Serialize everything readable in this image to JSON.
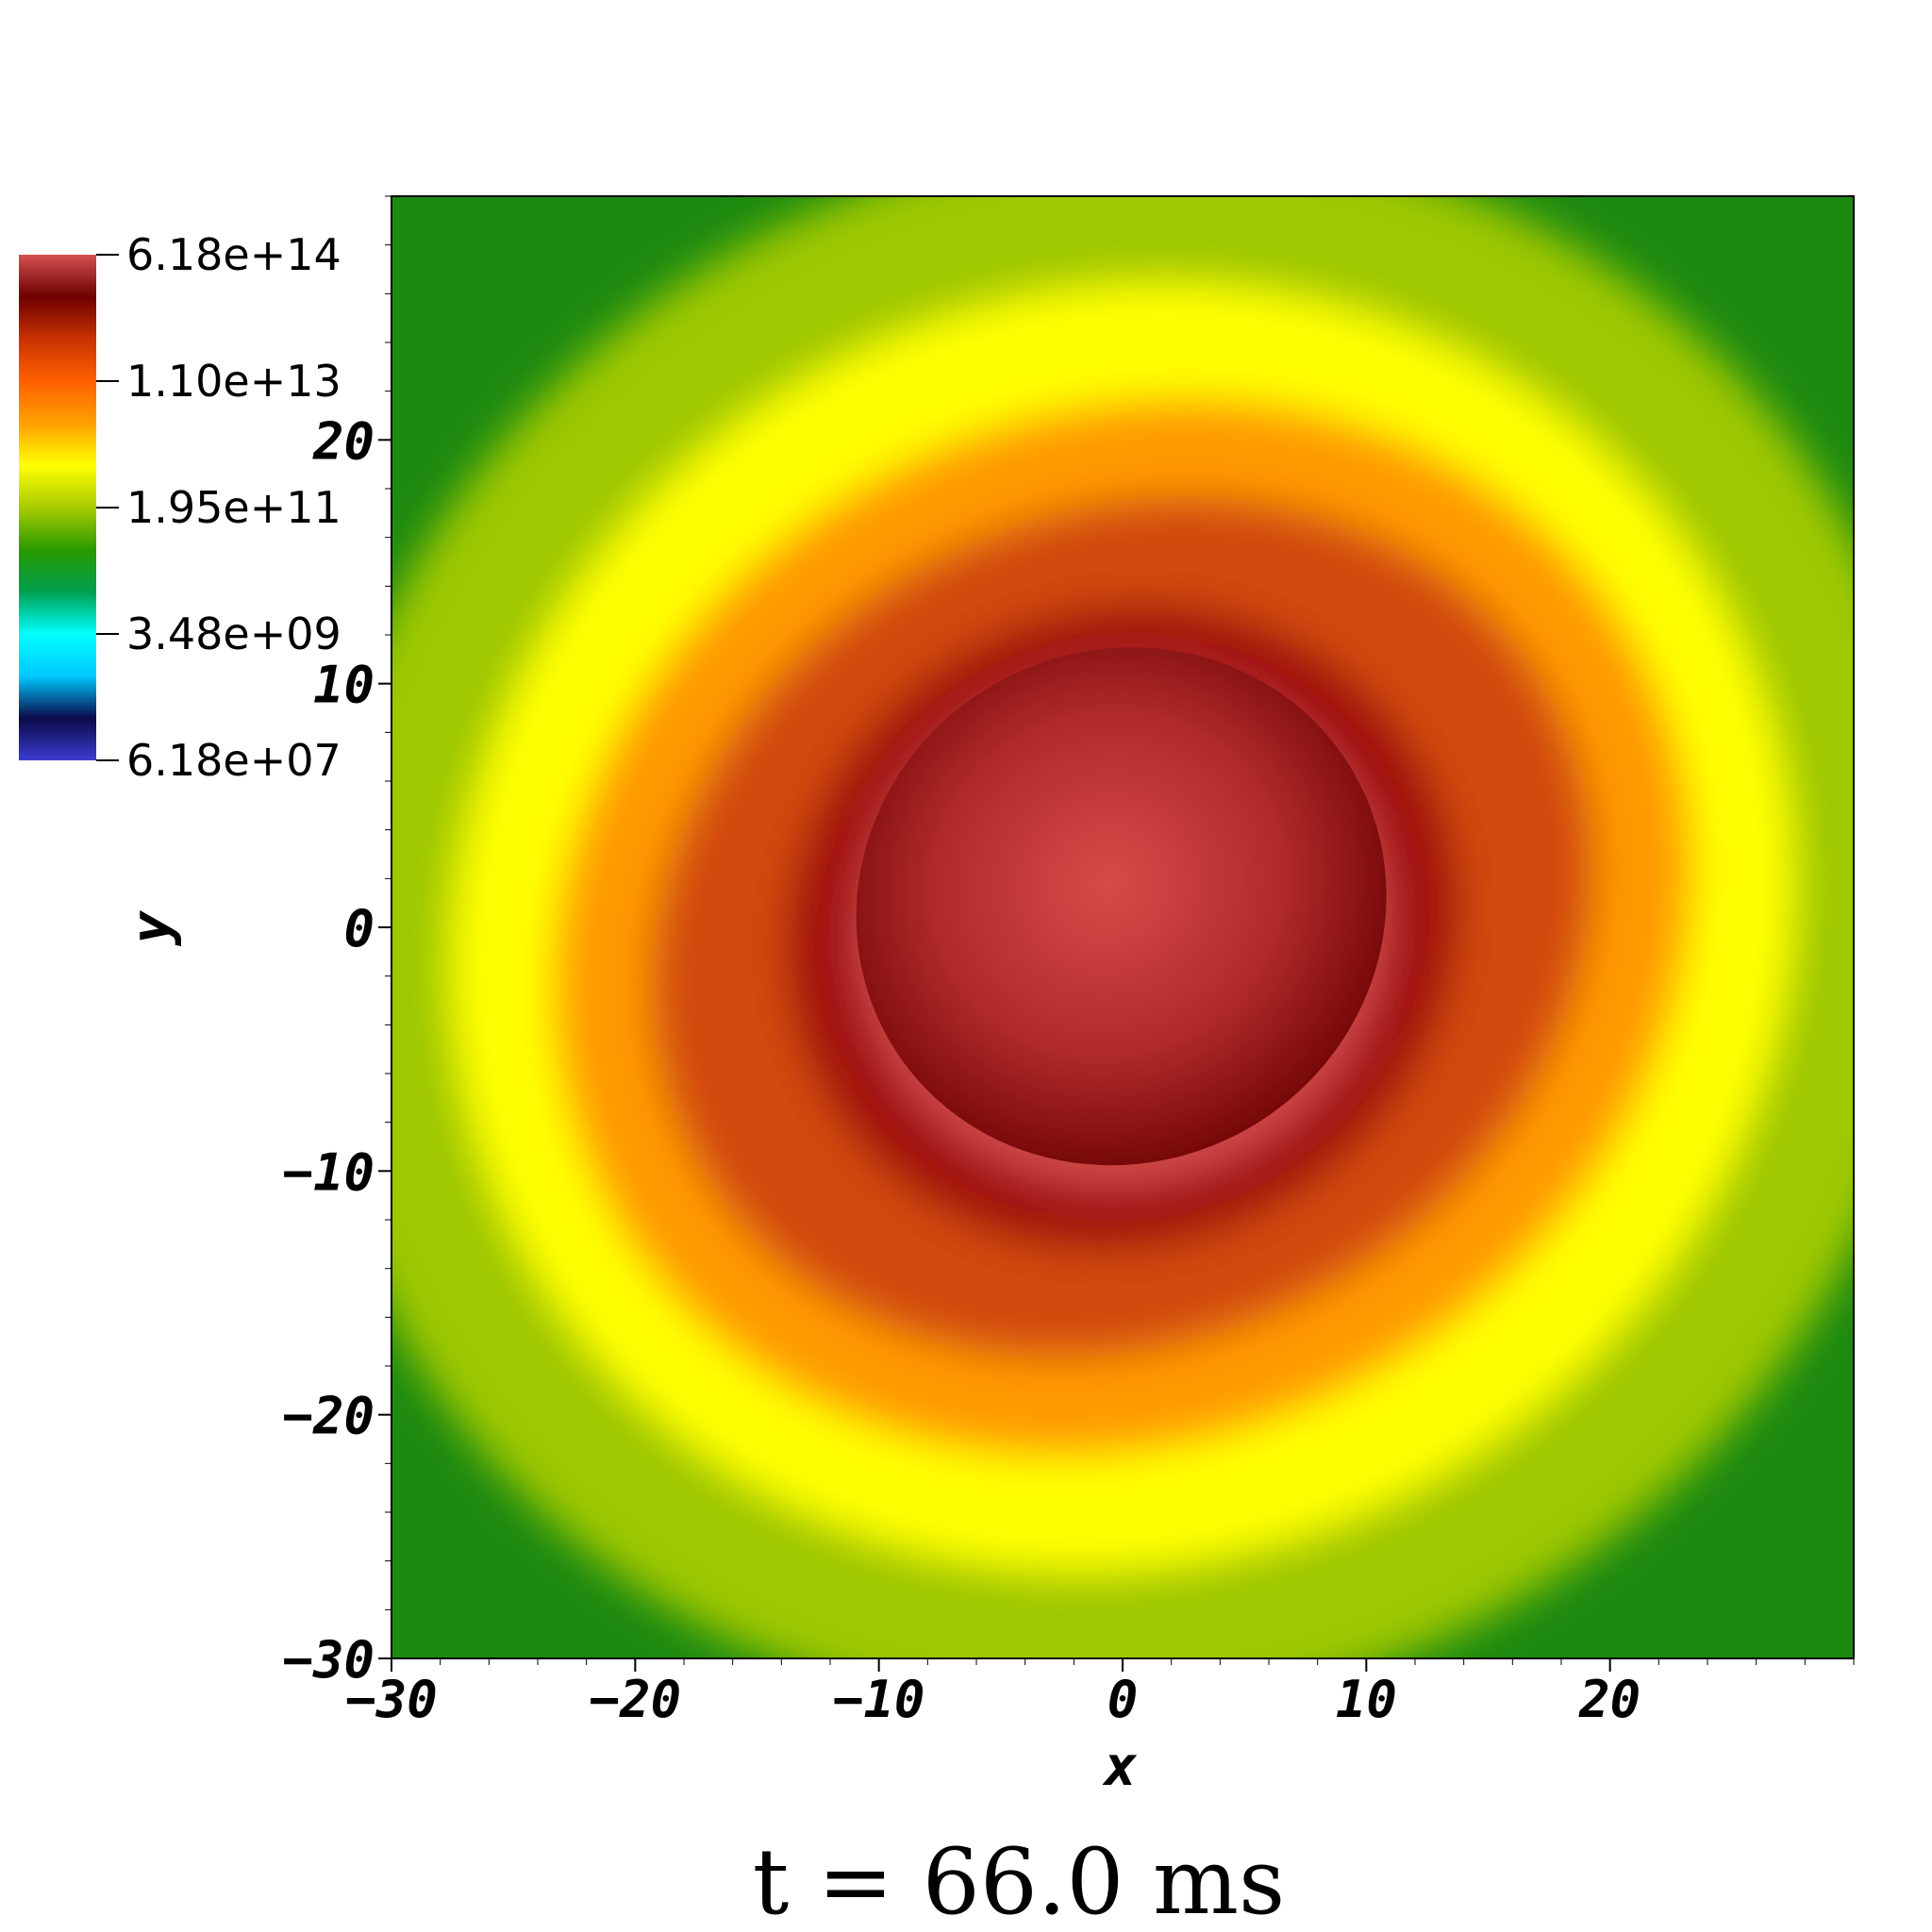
{
  "chart_data": {
    "type": "heatmap",
    "title": "",
    "xlabel": "x",
    "ylabel": "y",
    "xlim": [
      -30,
      30
    ],
    "ylim": [
      -30,
      30
    ],
    "x_ticks": [
      -30,
      -20,
      -10,
      0,
      10,
      20
    ],
    "y_ticks": [
      -30,
      -20,
      -10,
      0,
      10,
      20
    ],
    "colorbar": {
      "scale": "log",
      "min": 61800000.0,
      "max": 618000000000000.0,
      "tick_labels": [
        "6.18e+14",
        "1.10e+13",
        "1.95e+11",
        "3.48e+09",
        "6.18e+07"
      ],
      "tick_values": [
        618000000000000.0,
        11000000000000.0,
        195000000000.0,
        3480000000.0,
        61800000.0
      ],
      "colormap": [
        "#3c3cd0",
        "#0a0a4a",
        "#00c8ff",
        "#00ffff",
        "#00a050",
        "#2a9a00",
        "#a8cc00",
        "#ffff00",
        "#ffa000",
        "#ff6000",
        "#c83200",
        "#6e0000",
        "#d45050"
      ]
    },
    "structure": {
      "center": [
        0,
        0
      ],
      "core_value": 618000000000000.0,
      "rings": [
        {
          "rx": 11,
          "ry": 10.5,
          "value": 600000000000000.0,
          "color": "#d14a4a"
        },
        {
          "rx": 14,
          "ry": 13,
          "value": 30000000000000.0,
          "color": "#a01010"
        },
        {
          "rx": 20,
          "ry": 17,
          "value": 11000000000000.0,
          "color": "#d24a08"
        },
        {
          "rx": 24,
          "ry": 21,
          "value": 2000000000000.0,
          "color": "#ff9a00"
        },
        {
          "rx": 28,
          "ry": 26,
          "value": 195000000000.0,
          "color": "#ffff00"
        },
        {
          "rx": 34,
          "ry": 32,
          "value": 50000000000.0,
          "color": "#9ec800"
        }
      ],
      "background_value": 10000000000.0,
      "background_color": "#1c8a10"
    }
  },
  "caption": "t = 66.0 ms"
}
